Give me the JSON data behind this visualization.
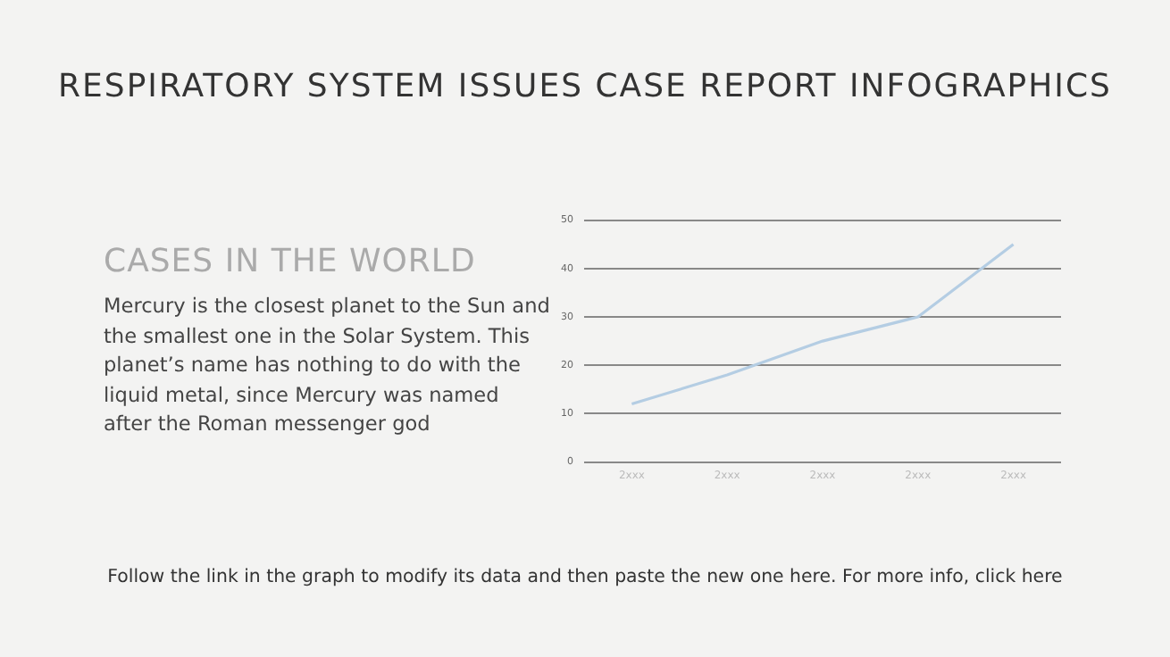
{
  "chart_data": {
    "type": "line",
    "title": "RESPIRATORY SYSTEM ISSUES CASE REPORT INFOGRAPHICS",
    "subtitle": "CASES IN THE WORLD",
    "annotations": [
      "Mercury is the closest planet to the Sun and the smallest one in the Solar System. This planet’s name has nothing to do with the liquid metal, since Mercury was named after the Roman messenger god",
      "Follow the link in the graph to modify its data and then paste the new one here. For more info, click here"
    ],
    "categories": [
      "2xxx",
      "2xxx",
      "2xxx",
      "2xxx",
      "2xxx"
    ],
    "series": [
      {
        "color": "#b4cde3",
        "values": [
          12,
          18,
          25,
          30,
          45
        ]
      }
    ],
    "ylim": [
      0,
      50
    ],
    "yticks": [
      0,
      10,
      20,
      30,
      40,
      50
    ],
    "grid": "y",
    "legend": false,
    "marker": "none",
    "line_style": "solid"
  }
}
